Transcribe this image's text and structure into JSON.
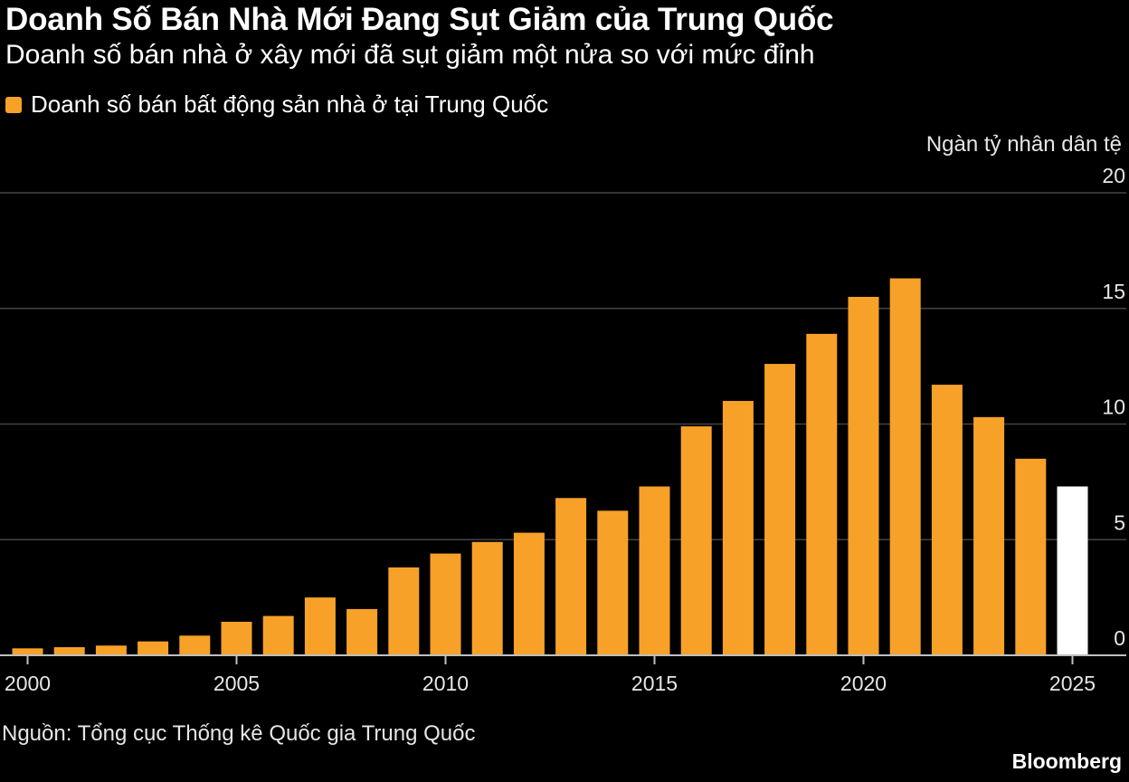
{
  "header": {
    "title": "Doanh Số Bán Nhà Mới Đang Sụt Giảm của Trung Quốc",
    "subtitle": "Doanh số bán nhà ở xây mới đã sụt giảm một nửa so với mức đỉnh"
  },
  "footer": {
    "source": "Nguồn: Tổng cục Thống kê Quốc gia Trung Quốc",
    "brand": "Bloomberg"
  },
  "chart_data": {
    "type": "bar",
    "title": "Doanh Số Bán Nhà Mới Đang Sụt Giảm của Trung Quốc",
    "subtitle": "Doanh số bán nhà ở xây mới đã sụt giảm một nửa so với mức đỉnh",
    "ylabel": "Ngàn tỷ nhân dân tệ",
    "xlabel": "",
    "ylim": [
      0,
      20
    ],
    "y_ticks": [
      0,
      5,
      10,
      15,
      20
    ],
    "y_tick_labels": [
      "0",
      "5",
      "10",
      "15",
      "20"
    ],
    "y_axis_side": "right",
    "grid": true,
    "legend_position": "top-left",
    "x_tick_labels": [
      "2000",
      "2005",
      "2010",
      "2015",
      "2020",
      "2025"
    ],
    "x_tick_values": [
      2000,
      2005,
      2010,
      2015,
      2020,
      2025
    ],
    "categories": [
      2000,
      2001,
      2002,
      2003,
      2004,
      2005,
      2006,
      2007,
      2008,
      2009,
      2010,
      2011,
      2012,
      2013,
      2014,
      2015,
      2016,
      2017,
      2018,
      2019,
      2020,
      2021,
      2022,
      2023,
      2024,
      2025
    ],
    "series": [
      {
        "name": "Doanh số bán bất động sản nhà ở tại Trung Quốc",
        "color": "#f7a128",
        "values": [
          0.3,
          0.35,
          0.42,
          0.6,
          0.85,
          1.45,
          1.7,
          2.5,
          2.0,
          3.8,
          4.4,
          4.9,
          5.3,
          6.8,
          6.25,
          7.3,
          9.9,
          11.0,
          12.6,
          13.9,
          15.5,
          16.3,
          11.7,
          10.3,
          8.5,
          null
        ]
      },
      {
        "name": "",
        "color": "#ffffff",
        "values": [
          null,
          null,
          null,
          null,
          null,
          null,
          null,
          null,
          null,
          null,
          null,
          null,
          null,
          null,
          null,
          null,
          null,
          null,
          null,
          null,
          null,
          null,
          null,
          null,
          null,
          7.3
        ]
      }
    ]
  },
  "colors": {
    "background": "#000000",
    "text": "#ffffff",
    "grid": "#444444",
    "bar": "#f7a128",
    "highlight_bar": "#ffffff"
  }
}
